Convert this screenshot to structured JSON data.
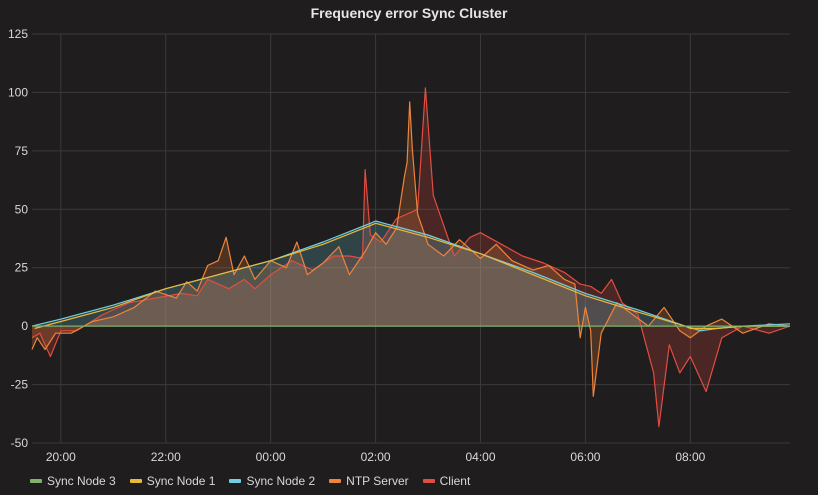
{
  "panel": {
    "title": "Frequency error Sync Cluster"
  },
  "colors": {
    "background": "#1f1d1d",
    "grid": "#3b3b3b",
    "text": "#d8d9da"
  },
  "chart_data": {
    "type": "line",
    "title": "Frequency error Sync Cluster",
    "xlabel": "",
    "ylabel": "",
    "x_ticks": [
      "20:00",
      "22:00",
      "00:00",
      "02:00",
      "04:00",
      "06:00",
      "08:00"
    ],
    "y_ticks": [
      125,
      100,
      75,
      50,
      25,
      0,
      -25,
      -50
    ],
    "ylim": [
      -50,
      125
    ],
    "xlim_hours": [
      19.45,
      9.9
    ],
    "grid": true,
    "legend_position": "bottom",
    "series": [
      {
        "name": "Sync Node 3",
        "color": "#7eb26d",
        "fill": false,
        "points": [
          [
            19.45,
            0
          ],
          [
            9.9,
            0
          ]
        ]
      },
      {
        "name": "Sync Node 1",
        "color": "#eab839",
        "fill": false,
        "points": [
          [
            19.5,
            -1
          ],
          [
            20.0,
            2
          ],
          [
            21.0,
            8
          ],
          [
            22.0,
            16
          ],
          [
            23.0,
            22
          ],
          [
            0.0,
            28
          ],
          [
            1.0,
            35
          ],
          [
            1.9,
            43
          ],
          [
            2.0,
            44
          ],
          [
            3.0,
            38
          ],
          [
            4.0,
            31
          ],
          [
            5.0,
            22
          ],
          [
            6.0,
            13
          ],
          [
            7.0,
            6
          ],
          [
            7.9,
            0
          ],
          [
            8.0,
            -1
          ],
          [
            8.5,
            -1
          ],
          [
            9.0,
            0
          ],
          [
            9.9,
            0
          ]
        ]
      },
      {
        "name": "Sync Node 2",
        "color": "#6ed0e0",
        "fill": true,
        "points": [
          [
            19.45,
            0
          ],
          [
            20.0,
            3
          ],
          [
            21.0,
            9
          ],
          [
            22.0,
            16
          ],
          [
            23.0,
            22
          ],
          [
            0.0,
            28
          ],
          [
            1.0,
            36
          ],
          [
            1.9,
            44
          ],
          [
            2.0,
            45
          ],
          [
            3.0,
            39
          ],
          [
            4.0,
            31
          ],
          [
            5.0,
            23
          ],
          [
            6.0,
            14
          ],
          [
            7.0,
            7
          ],
          [
            7.9,
            0
          ],
          [
            8.2,
            -2
          ],
          [
            8.5,
            -1
          ],
          [
            9.0,
            0
          ],
          [
            9.9,
            1
          ]
        ]
      },
      {
        "name": "NTP Server",
        "color": "#ef843c",
        "fill": true,
        "points": [
          [
            19.45,
            -10
          ],
          [
            19.55,
            -5
          ],
          [
            19.7,
            -10
          ],
          [
            19.9,
            -3
          ],
          [
            20.2,
            -3
          ],
          [
            20.6,
            2
          ],
          [
            21.0,
            4
          ],
          [
            21.4,
            8
          ],
          [
            21.8,
            15
          ],
          [
            22.2,
            12
          ],
          [
            22.4,
            19
          ],
          [
            22.6,
            15
          ],
          [
            22.8,
            26
          ],
          [
            23.0,
            28
          ],
          [
            23.15,
            38
          ],
          [
            23.3,
            22
          ],
          [
            23.5,
            30
          ],
          [
            23.7,
            20
          ],
          [
            0.0,
            28
          ],
          [
            0.3,
            25
          ],
          [
            0.5,
            36
          ],
          [
            0.7,
            22
          ],
          [
            1.0,
            27
          ],
          [
            1.3,
            34
          ],
          [
            1.5,
            22
          ],
          [
            1.8,
            32
          ],
          [
            2.0,
            40
          ],
          [
            2.2,
            35
          ],
          [
            2.4,
            42
          ],
          [
            2.55,
            64
          ],
          [
            2.6,
            70
          ],
          [
            2.65,
            96
          ],
          [
            2.7,
            76
          ],
          [
            2.8,
            48
          ],
          [
            3.0,
            35
          ],
          [
            3.3,
            30
          ],
          [
            3.6,
            37
          ],
          [
            4.0,
            29
          ],
          [
            4.3,
            35
          ],
          [
            4.6,
            28
          ],
          [
            5.0,
            24
          ],
          [
            5.3,
            26
          ],
          [
            5.6,
            20
          ],
          [
            5.8,
            18
          ],
          [
            5.9,
            -5
          ],
          [
            6.0,
            8
          ],
          [
            6.1,
            -2
          ],
          [
            6.15,
            -30
          ],
          [
            6.3,
            -3
          ],
          [
            6.6,
            10
          ],
          [
            6.9,
            5
          ],
          [
            7.2,
            0
          ],
          [
            7.5,
            8
          ],
          [
            7.8,
            -2
          ],
          [
            8.0,
            -5
          ],
          [
            8.3,
            0
          ],
          [
            8.6,
            3
          ],
          [
            9.0,
            -3
          ],
          [
            9.5,
            1
          ],
          [
            9.9,
            0
          ]
        ]
      },
      {
        "name": "Client",
        "color": "#e24d42",
        "fill": true,
        "points": [
          [
            19.45,
            -5
          ],
          [
            19.6,
            -3
          ],
          [
            19.8,
            -13
          ],
          [
            20.0,
            -2
          ],
          [
            20.3,
            -2
          ],
          [
            20.8,
            5
          ],
          [
            21.3,
            10
          ],
          [
            21.8,
            12
          ],
          [
            22.3,
            14
          ],
          [
            22.6,
            13
          ],
          [
            22.8,
            20
          ],
          [
            23.2,
            16
          ],
          [
            23.5,
            20
          ],
          [
            23.7,
            16
          ],
          [
            0.0,
            22
          ],
          [
            0.4,
            28
          ],
          [
            0.8,
            24
          ],
          [
            1.2,
            30
          ],
          [
            1.5,
            30
          ],
          [
            1.75,
            29
          ],
          [
            1.8,
            67
          ],
          [
            1.9,
            39
          ],
          [
            2.1,
            36
          ],
          [
            2.4,
            46
          ],
          [
            2.6,
            48
          ],
          [
            2.8,
            50
          ],
          [
            2.95,
            102
          ],
          [
            3.1,
            56
          ],
          [
            3.5,
            30
          ],
          [
            3.8,
            38
          ],
          [
            4.0,
            40
          ],
          [
            4.4,
            35
          ],
          [
            4.8,
            30
          ],
          [
            5.2,
            27
          ],
          [
            5.6,
            23
          ],
          [
            5.9,
            18
          ],
          [
            6.1,
            17
          ],
          [
            6.3,
            14
          ],
          [
            6.5,
            20
          ],
          [
            6.7,
            10
          ],
          [
            7.0,
            5
          ],
          [
            7.3,
            -20
          ],
          [
            7.4,
            -43
          ],
          [
            7.6,
            -8
          ],
          [
            7.8,
            -20
          ],
          [
            8.0,
            -13
          ],
          [
            8.3,
            -28
          ],
          [
            8.6,
            -5
          ],
          [
            9.0,
            0
          ],
          [
            9.5,
            -3
          ],
          [
            9.9,
            0
          ]
        ]
      }
    ]
  }
}
